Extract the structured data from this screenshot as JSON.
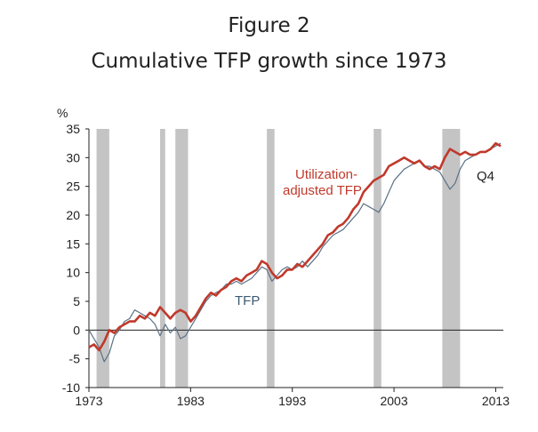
{
  "figure": {
    "title": "Figure 2",
    "subtitle": "Cumulative TFP growth since 1973"
  },
  "chart_data": {
    "type": "line",
    "title": "Cumulative TFP growth since 1973",
    "ylabel": "%",
    "xlim": [
      1973,
      2013.75
    ],
    "ylim": [
      -10,
      35
    ],
    "yticks": [
      -10,
      -5,
      0,
      5,
      10,
      15,
      20,
      25,
      30,
      35
    ],
    "xticks": [
      1973,
      1983,
      1993,
      2003,
      2013
    ],
    "grid": false,
    "recessions": [
      [
        1973.75,
        1975.0
      ],
      [
        1980.0,
        1980.5
      ],
      [
        1981.5,
        1982.75
      ],
      [
        1990.5,
        1991.25
      ],
      [
        2001.0,
        2001.75
      ],
      [
        2007.75,
        2009.5
      ]
    ],
    "annotations": [
      {
        "text": "Utilization-",
        "series": "Utilization-adjusted TFP",
        "color": "#c0392b"
      },
      {
        "text": "adjusted TFP",
        "series": "Utilization-adjusted TFP",
        "color": "#c0392b"
      },
      {
        "text": "TFP",
        "series": "TFP",
        "color": "#3d5a74"
      },
      {
        "text": "Q4",
        "series": "",
        "color": "#222222"
      }
    ],
    "series": [
      {
        "name": "TFP",
        "color": "#5b7186",
        "x": [
          1973,
          1973.5,
          1974,
          1974.5,
          1975,
          1975.5,
          1976,
          1976.5,
          1977,
          1977.5,
          1978,
          1978.5,
          1979,
          1979.5,
          1980,
          1980.5,
          1981,
          1981.5,
          1982,
          1982.5,
          1983,
          1983.5,
          1984,
          1984.5,
          1985,
          1985.5,
          1986,
          1986.5,
          1987,
          1987.5,
          1988,
          1988.5,
          1989,
          1989.5,
          1990,
          1990.5,
          1991,
          1991.5,
          1992,
          1992.5,
          1993,
          1993.5,
          1994,
          1994.5,
          1995,
          1995.5,
          1996,
          1996.5,
          1997,
          1997.5,
          1998,
          1998.5,
          1999,
          1999.5,
          2000,
          2000.5,
          2001,
          2001.5,
          2002,
          2002.5,
          2003,
          2003.5,
          2004,
          2004.5,
          2005,
          2005.5,
          2006,
          2006.5,
          2007,
          2007.5,
          2008,
          2008.5,
          2009,
          2009.5,
          2010,
          2010.5,
          2011,
          2011.5,
          2012,
          2012.5,
          2013,
          2013.5
        ],
        "values": [
          0,
          -1.5,
          -3,
          -5.5,
          -4,
          -1,
          0,
          1.5,
          2,
          3.5,
          3,
          2.5,
          2,
          1,
          -1,
          1,
          -0.5,
          0.5,
          -1.5,
          -1,
          0.5,
          2,
          3.5,
          5,
          6,
          6.5,
          7,
          8,
          8,
          8.5,
          8,
          8.5,
          9,
          10,
          11,
          10.5,
          8.5,
          9.5,
          10.5,
          11,
          10.5,
          11,
          12,
          11,
          12,
          13,
          14.5,
          15.5,
          16.5,
          17,
          17.5,
          18.5,
          19.5,
          20.5,
          22,
          21.5,
          21,
          20.5,
          22,
          24,
          26,
          27,
          28,
          28.5,
          29,
          29.5,
          28.5,
          28.5,
          28,
          27.5,
          26,
          24.5,
          25.5,
          28,
          29.5,
          30,
          30.5,
          31,
          31,
          31.5,
          32,
          32.5
        ]
      },
      {
        "name": "Utilization-adjusted TFP",
        "color": "#c0392b",
        "x": [
          1973,
          1973.5,
          1974,
          1974.5,
          1975,
          1975.5,
          1976,
          1976.5,
          1977,
          1977.5,
          1978,
          1978.5,
          1979,
          1979.5,
          1980,
          1980.5,
          1981,
          1981.5,
          1982,
          1982.5,
          1983,
          1983.5,
          1984,
          1984.5,
          1985,
          1985.5,
          1986,
          1986.5,
          1987,
          1987.5,
          1988,
          1988.5,
          1989,
          1989.5,
          1990,
          1990.5,
          1991,
          1991.5,
          1992,
          1992.5,
          1993,
          1993.5,
          1994,
          1994.5,
          1995,
          1995.5,
          1996,
          1996.5,
          1997,
          1997.5,
          1998,
          1998.5,
          1999,
          1999.5,
          2000,
          2000.5,
          2001,
          2001.5,
          2002,
          2002.5,
          2003,
          2003.5,
          2004,
          2004.5,
          2005,
          2005.5,
          2006,
          2006.5,
          2007,
          2007.5,
          2008,
          2008.5,
          2009,
          2009.5,
          2010,
          2010.5,
          2011,
          2011.5,
          2012,
          2012.5,
          2013,
          2013.5
        ],
        "values": [
          -3,
          -2.5,
          -3.5,
          -2,
          0,
          -0.5,
          0.5,
          1,
          1.5,
          1.5,
          2.5,
          2,
          3,
          2.5,
          4,
          3,
          2,
          3,
          3.5,
          3,
          1.5,
          2.5,
          4,
          5.5,
          6.5,
          6,
          7,
          7.5,
          8.5,
          9,
          8.5,
          9.5,
          10,
          10.5,
          12,
          11.5,
          10,
          9,
          9.5,
          10.5,
          10.5,
          11.5,
          11,
          12,
          13,
          14,
          15,
          16.5,
          17,
          18,
          18.5,
          19.5,
          21,
          22,
          24,
          25,
          26,
          26.5,
          27,
          28.5,
          29,
          29.5,
          30,
          29.5,
          29,
          29.5,
          28.5,
          28,
          28.5,
          28,
          30,
          31.5,
          31,
          30.5,
          31,
          30.5,
          30.5,
          31,
          31,
          31.5,
          32.5,
          32
        ]
      }
    ]
  }
}
